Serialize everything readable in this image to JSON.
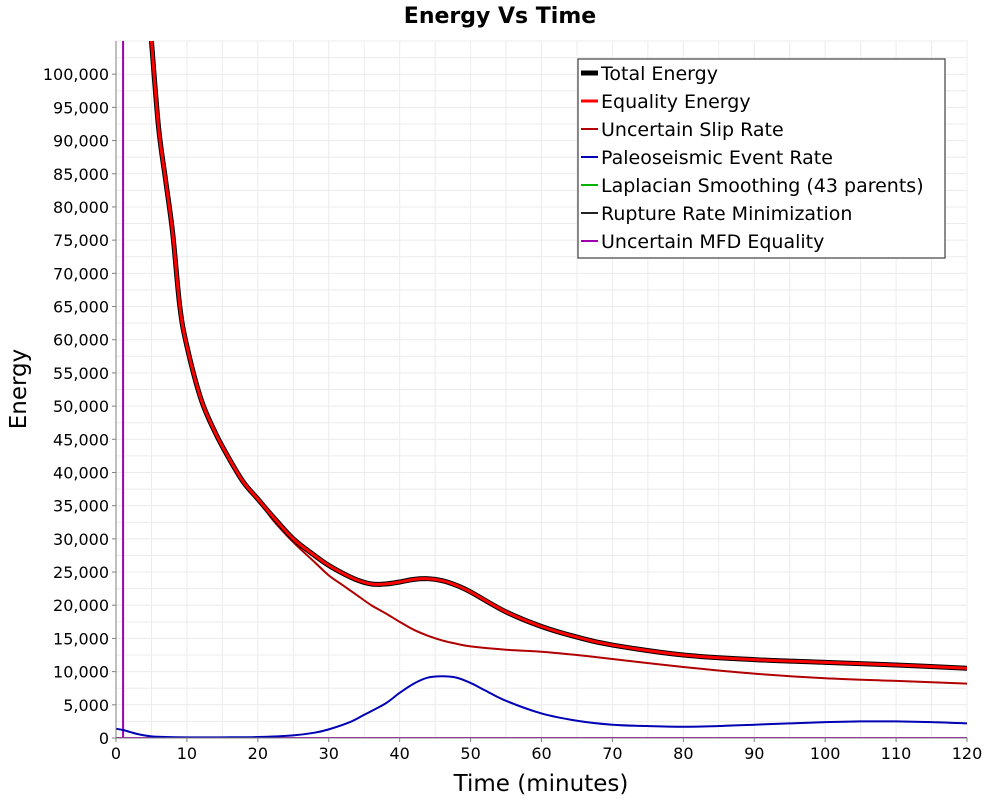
{
  "chart_data": {
    "type": "line",
    "title": "Energy Vs Time",
    "xlabel": "Time (minutes)",
    "ylabel": "Energy",
    "xlim": [
      0,
      120
    ],
    "ylim": [
      0,
      105000
    ],
    "x_ticks": [
      0,
      10,
      20,
      30,
      40,
      50,
      60,
      70,
      80,
      90,
      100,
      110,
      120
    ],
    "x_tick_labels": [
      "0",
      "10",
      "20",
      "30",
      "40",
      "50",
      "60",
      "70",
      "80",
      "90",
      "100",
      "110",
      "120"
    ],
    "y_ticks": [
      0,
      5000,
      10000,
      15000,
      20000,
      25000,
      30000,
      35000,
      40000,
      45000,
      50000,
      55000,
      60000,
      65000,
      70000,
      75000,
      80000,
      85000,
      90000,
      95000,
      100000
    ],
    "y_tick_labels": [
      "0",
      "5,000",
      "10,000",
      "15,000",
      "20,000",
      "25,000",
      "30,000",
      "35,000",
      "40,000",
      "45,000",
      "50,000",
      "55,000",
      "60,000",
      "65,000",
      "70,000",
      "75,000",
      "80,000",
      "85,000",
      "90,000",
      "95,000",
      "100,000"
    ],
    "grid": true,
    "legend_position": "top-right",
    "series": [
      {
        "name": "Total Energy",
        "color": "#000000",
        "x": [
          5,
          6,
          7,
          8,
          9,
          10,
          12,
          14,
          16,
          18,
          20,
          22,
          25,
          28,
          30,
          32,
          34,
          36,
          38,
          40,
          42,
          44,
          46,
          48,
          50,
          55,
          60,
          65,
          70,
          80,
          90,
          100,
          110,
          120
        ],
        "values": [
          105000,
          92000,
          84000,
          76000,
          65000,
          59000,
          51000,
          46000,
          42000,
          38500,
          36000,
          33500,
          30000,
          27500,
          26000,
          24800,
          23800,
          23200,
          23200,
          23500,
          23900,
          24000,
          23700,
          23000,
          22000,
          19000,
          16800,
          15200,
          14000,
          12500,
          11800,
          11400,
          11000,
          10500
        ]
      },
      {
        "name": "Equality Energy",
        "color": "#ff0000",
        "x": [
          5,
          6,
          7,
          8,
          9,
          10,
          12,
          14,
          16,
          18,
          20,
          22,
          25,
          28,
          30,
          32,
          34,
          36,
          38,
          40,
          42,
          44,
          46,
          48,
          50,
          55,
          60,
          65,
          70,
          80,
          90,
          100,
          110,
          120
        ],
        "values": [
          105000,
          92000,
          84000,
          76000,
          65000,
          59000,
          51000,
          46000,
          42000,
          38500,
          36000,
          33500,
          30000,
          27500,
          26000,
          24800,
          23800,
          23200,
          23200,
          23500,
          23900,
          24000,
          23700,
          23000,
          22000,
          19000,
          16800,
          15200,
          14000,
          12500,
          11800,
          11400,
          11000,
          10500
        ]
      },
      {
        "name": "Uncertain Slip Rate",
        "color": "#b00000",
        "x": [
          5,
          6,
          7,
          8,
          9,
          10,
          12,
          14,
          16,
          18,
          20,
          22,
          25,
          28,
          30,
          32,
          34,
          36,
          38,
          40,
          42,
          44,
          46,
          48,
          50,
          55,
          60,
          65,
          70,
          80,
          90,
          100,
          110,
          120
        ],
        "values": [
          105000,
          92000,
          84000,
          76000,
          65000,
          59000,
          51000,
          46000,
          42000,
          38500,
          36000,
          33000,
          29500,
          26500,
          24500,
          23000,
          21500,
          20000,
          18800,
          17500,
          16300,
          15400,
          14700,
          14200,
          13800,
          13300,
          13000,
          12500,
          11900,
          10700,
          9700,
          9000,
          8600,
          8200
        ]
      },
      {
        "name": "Paleoseismic Event Rate",
        "color": "#0000b4",
        "x": [
          0,
          1,
          2,
          3,
          4,
          5,
          7,
          10,
          15,
          20,
          25,
          28,
          30,
          33,
          35,
          38,
          40,
          42,
          44,
          46,
          48,
          50,
          52,
          55,
          60,
          65,
          70,
          75,
          80,
          85,
          90,
          95,
          100,
          105,
          110,
          115,
          120
        ],
        "values": [
          1400,
          1200,
          900,
          600,
          400,
          250,
          150,
          100,
          100,
          150,
          400,
          800,
          1300,
          2400,
          3500,
          5200,
          6800,
          8200,
          9100,
          9300,
          9100,
          8300,
          7200,
          5600,
          3700,
          2600,
          2000,
          1800,
          1700,
          1800,
          2000,
          2200,
          2400,
          2500,
          2500,
          2400,
          2200
        ]
      },
      {
        "name": "Laplacian Smoothing (43 parents)",
        "color": "#00b400",
        "x": [
          0,
          120
        ],
        "values": [
          0,
          0
        ]
      },
      {
        "name": "Rupture Rate Minimization",
        "color": "#222222",
        "x": [
          0,
          120
        ],
        "values": [
          0,
          0
        ]
      },
      {
        "name": "Uncertain MFD Equality",
        "color": "#a000b0",
        "x": [
          0,
          1,
          1,
          1,
          120
        ],
        "values": [
          0,
          0,
          105000,
          0,
          0
        ]
      }
    ]
  }
}
